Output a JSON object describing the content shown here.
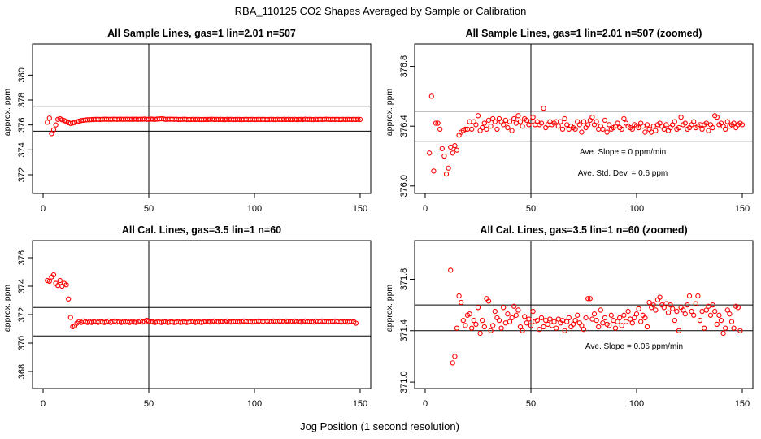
{
  "figure": {
    "title": "RBA_110125  CO2 Shapes Averaged by Sample or Calibration",
    "xlabel": "Jog Position (1 second resolution)",
    "colors": {
      "points": "#ff0000",
      "lines": "#000000",
      "frame": "#000000"
    }
  },
  "chart_data": [
    {
      "type": "scatter",
      "title": "All Sample Lines, gas=1 lin=2.01 n=507",
      "ylabel": "approx. ppm",
      "xlim": [
        -5,
        155
      ],
      "ylim": [
        370.5,
        382.5
      ],
      "xticks": [
        0,
        50,
        100,
        150
      ],
      "yticks": [
        372,
        374,
        376,
        378,
        380
      ],
      "vline": 50,
      "hlines": [
        375.5,
        377.5
      ],
      "annotations": [],
      "series": [
        {
          "x_start": 2,
          "x_step": 1,
          "y": [
            376.22,
            376.55,
            375.3,
            375.6,
            376.0,
            376.45,
            376.5,
            376.42,
            376.35,
            376.28,
            376.18,
            376.12,
            376.16,
            376.2,
            376.25,
            376.3,
            376.35,
            376.38,
            376.4,
            376.42,
            376.42,
            376.43,
            376.44,
            376.45,
            376.45,
            376.44,
            376.45,
            376.46,
            376.46,
            376.45,
            376.45,
            376.46,
            376.46,
            376.45,
            376.46,
            376.46,
            376.45,
            376.46,
            376.46,
            376.45,
            376.46,
            376.46,
            376.46,
            376.45,
            376.46,
            376.46,
            376.47,
            376.45,
            376.46,
            376.47,
            376.46,
            376.45,
            376.47,
            376.48,
            376.5,
            376.48,
            376.45,
            376.46,
            376.46,
            376.46,
            376.45,
            376.46,
            376.44,
            376.44,
            376.45,
            376.46,
            376.44,
            376.43,
            376.44,
            376.45,
            376.44,
            376.45,
            376.44,
            376.43,
            376.44,
            376.44,
            376.44,
            376.45,
            376.46,
            376.44,
            376.45,
            376.44,
            376.45,
            376.44,
            376.43,
            376.45,
            376.44,
            376.45,
            376.43,
            376.44,
            376.45,
            376.44,
            376.43,
            376.44,
            376.45,
            376.44,
            376.44,
            376.45,
            376.43,
            376.44,
            376.45,
            376.44,
            376.45,
            376.44,
            376.43,
            376.44,
            376.45,
            376.44,
            376.43,
            376.45,
            376.44,
            376.44,
            376.45,
            376.44,
            376.45,
            376.44,
            376.44,
            376.45,
            376.43,
            376.44,
            376.45,
            376.44,
            376.46,
            376.44,
            376.45,
            376.44,
            376.43,
            376.45,
            376.44,
            376.45,
            376.44,
            376.45,
            376.46,
            376.45,
            376.44,
            376.45,
            376.44,
            376.45,
            376.44,
            376.44,
            376.45,
            376.44,
            376.45,
            376.44,
            376.44,
            376.45,
            376.44,
            376.45,
            376.44
          ]
        }
      ]
    },
    {
      "type": "scatter",
      "title": "All Sample Lines, gas=1 lin=2.01 n=507 (zoomed)",
      "ylabel": "approx. ppm",
      "xlim": [
        -5,
        155
      ],
      "ylim": [
        375.95,
        376.95
      ],
      "xticks": [
        0,
        50,
        100,
        150
      ],
      "yticks": [
        376.0,
        376.4,
        376.8
      ],
      "ytick_labels": [
        "376.0",
        "376.4",
        "376.8"
      ],
      "vline": 50,
      "hlines": [
        376.3,
        376.5
      ],
      "annotations": [
        "Ave. Slope =  0  ppm/min",
        "Ave. Std. Dev. =  0.6  ppm"
      ],
      "series": [
        {
          "x_start": 2,
          "x_step": 1,
          "y": [
            376.22,
            376.6,
            376.1,
            376.42,
            376.42,
            376.38,
            376.25,
            376.2,
            376.08,
            376.12,
            376.26,
            376.22,
            376.27,
            376.24,
            376.34,
            376.36,
            376.37,
            376.38,
            376.38,
            376.43,
            376.38,
            376.43,
            376.41,
            376.47,
            376.37,
            376.39,
            376.42,
            376.38,
            376.44,
            376.4,
            376.45,
            376.43,
            376.38,
            376.45,
            376.43,
            376.41,
            376.44,
            376.39,
            376.43,
            376.37,
            376.45,
            376.42,
            376.47,
            376.43,
            376.4,
            376.45,
            376.44,
            376.41,
            376.43,
            376.46,
            376.41,
            376.43,
            376.41,
            376.42,
            376.52,
            376.39,
            376.41,
            376.43,
            376.41,
            376.42,
            376.43,
            376.4,
            376.43,
            376.38,
            376.45,
            376.41,
            376.38,
            376.4,
            376.39,
            376.38,
            376.43,
            376.41,
            376.36,
            376.43,
            376.39,
            376.41,
            376.44,
            376.46,
            376.41,
            376.43,
            376.38,
            376.4,
            376.38,
            376.44,
            376.36,
            376.41,
            376.38,
            376.39,
            376.4,
            376.42,
            376.39,
            376.38,
            376.45,
            376.42,
            376.4,
            376.39,
            376.38,
            376.41,
            376.4,
            376.39,
            376.42,
            376.4,
            376.36,
            376.41,
            376.38,
            376.36,
            376.4,
            376.37,
            376.41,
            376.42,
            376.4,
            376.38,
            376.41,
            376.37,
            376.39,
            376.41,
            376.43,
            376.38,
            376.39,
            376.46,
            376.41,
            376.42,
            376.38,
            376.39,
            376.41,
            376.43,
            376.39,
            376.4,
            376.41,
            376.38,
            376.41,
            376.42,
            376.37,
            376.41,
            376.39,
            376.47,
            376.46,
            376.41,
            376.42,
            376.4,
            376.38,
            376.43,
            376.4,
            376.41,
            376.42,
            376.39,
            376.41,
            376.42,
            376.41
          ]
        }
      ]
    },
    {
      "type": "scatter",
      "title": "All Cal. Lines, gas=3.5 lin=1 n=60",
      "ylabel": "approx. ppm",
      "xlim": [
        -5,
        155
      ],
      "ylim": [
        366.8,
        377.2
      ],
      "xticks": [
        0,
        50,
        100,
        150
      ],
      "yticks": [
        368,
        370,
        372,
        374,
        376
      ],
      "vline": 50,
      "hlines": [
        370.5,
        372.5
      ],
      "annotations": [],
      "series": [
        {
          "x_start": 2,
          "x_step": 1,
          "y": [
            374.4,
            374.35,
            374.65,
            374.8,
            374.2,
            374.05,
            374.4,
            374.0,
            374.2,
            374.1,
            373.1,
            371.8,
            371.15,
            371.2,
            371.4,
            371.5,
            371.45,
            371.55,
            371.5,
            371.45,
            371.5,
            371.45,
            371.5,
            371.52,
            371.45,
            371.5,
            371.48,
            371.45,
            371.5,
            371.55,
            371.45,
            371.5,
            371.55,
            371.48,
            371.5,
            371.45,
            371.5,
            371.48,
            371.52,
            371.45,
            371.5,
            371.48,
            371.45,
            371.5,
            371.55,
            371.48,
            371.5,
            371.6,
            371.52,
            371.5,
            371.48,
            371.45,
            371.5,
            371.48,
            371.45,
            371.52,
            371.5,
            371.45,
            371.48,
            371.5,
            371.45,
            371.48,
            371.5,
            371.45,
            371.48,
            371.5,
            371.45,
            371.48,
            371.5,
            371.52,
            371.45,
            371.5,
            371.48,
            371.45,
            371.5,
            371.52,
            371.5,
            371.48,
            371.5,
            371.55,
            371.5,
            371.48,
            371.5,
            371.52,
            371.5,
            371.55,
            371.5,
            371.48,
            371.5,
            371.52,
            371.5,
            371.48,
            371.5,
            371.55,
            371.5,
            371.52,
            371.5,
            371.48,
            371.5,
            371.52,
            371.55,
            371.5,
            371.52,
            371.5,
            371.55,
            371.52,
            371.5,
            371.55,
            371.52,
            371.5,
            371.55,
            371.52,
            371.5,
            371.55,
            371.52,
            371.5,
            371.52,
            371.55,
            371.5,
            371.52,
            371.48,
            371.5,
            371.55,
            371.5,
            371.52,
            371.5,
            371.48,
            371.55,
            371.52,
            371.5,
            371.55,
            371.52,
            371.5,
            371.48,
            371.5,
            371.52,
            371.55,
            371.5,
            371.52,
            371.48,
            371.5,
            371.52,
            371.48,
            371.5,
            371.52,
            371.5,
            371.4
          ]
        }
      ]
    },
    {
      "type": "scatter",
      "title": "All Cal. Lines, gas=3.5 lin=1 n=60 (zoomed)",
      "ylabel": "approx. ppm",
      "xlim": [
        -5,
        155
      ],
      "ylim": [
        370.95,
        372.1
      ],
      "xticks": [
        0,
        50,
        100,
        150
      ],
      "yticks": [
        371.0,
        371.4,
        371.8
      ],
      "ytick_labels": [
        "371.0",
        "371.4",
        "371.8"
      ],
      "vline": 50,
      "hlines": [
        371.4,
        371.6
      ],
      "annotations": [
        "Ave. Slope =  0.06  ppm/min"
      ],
      "series": [
        {
          "x_start": 12,
          "x_step": 1,
          "y": [
            371.87,
            371.15,
            371.2,
            371.42,
            371.67,
            371.62,
            371.48,
            371.44,
            371.52,
            371.53,
            371.42,
            371.48,
            371.45,
            371.58,
            371.38,
            371.48,
            371.43,
            371.65,
            371.63,
            371.4,
            371.44,
            371.55,
            371.5,
            371.48,
            371.42,
            371.58,
            371.46,
            371.53,
            371.47,
            371.5,
            371.59,
            371.52,
            371.56,
            371.43,
            371.4,
            371.51,
            371.46,
            371.49,
            371.44,
            371.55,
            371.47,
            371.48,
            371.41,
            371.5,
            371.43,
            371.48,
            371.45,
            371.49,
            371.44,
            371.47,
            371.42,
            371.49,
            371.46,
            371.48,
            371.4,
            371.47,
            371.5,
            371.43,
            371.45,
            371.48,
            371.52,
            371.46,
            371.44,
            371.41,
            371.5,
            371.65,
            371.65,
            371.49,
            371.53,
            371.48,
            371.43,
            371.56,
            371.46,
            371.5,
            371.45,
            371.44,
            371.52,
            371.48,
            371.42,
            371.47,
            371.5,
            371.44,
            371.52,
            371.47,
            371.55,
            371.49,
            371.46,
            371.5,
            371.53,
            371.57,
            371.47,
            371.52,
            371.5,
            371.43,
            371.62,
            371.58,
            371.6,
            371.56,
            371.64,
            371.66,
            371.6,
            371.58,
            371.61,
            371.54,
            371.6,
            371.57,
            371.48,
            371.55,
            371.4,
            371.58,
            371.56,
            371.53,
            371.6,
            371.67,
            371.55,
            371.52,
            371.61,
            371.67,
            371.48,
            371.55,
            371.42,
            371.56,
            371.59,
            371.52,
            371.6,
            371.55,
            371.45,
            371.52,
            371.48,
            371.38,
            371.42,
            371.56,
            371.53,
            371.47,
            371.42,
            371.59,
            371.58,
            371.4
          ]
        }
      ]
    }
  ]
}
